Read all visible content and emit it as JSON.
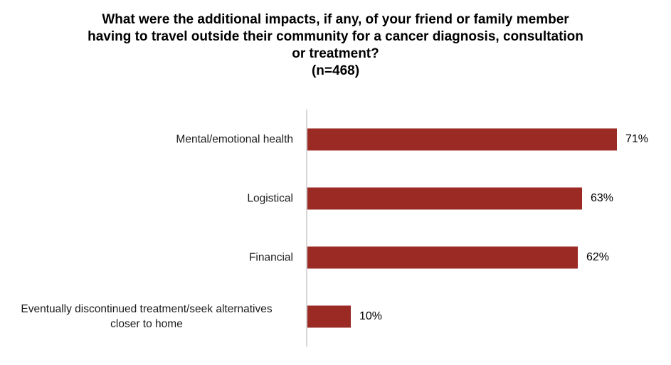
{
  "chart_data": {
    "type": "bar",
    "orientation": "horizontal",
    "title": "What were the additional impacts, if any, of your friend or family member having to travel outside their community for a cancer diagnosis, consultation or treatment?",
    "sample_size": "(n=468)",
    "title_lines": [
      "What were the additional impacts, if any, of your friend or family member",
      "having to travel outside their community for a cancer diagnosis, consultation",
      "or treatment?",
      "(n=468)"
    ],
    "categories": [
      "Mental/emotional health",
      "Logistical",
      "Financial",
      "Eventually discontinued treatment/seek alternatives closer to home"
    ],
    "category_display_lines": [
      [
        "Mental/emotional health"
      ],
      [
        "Logistical"
      ],
      [
        "Financial"
      ],
      [
        "Eventually discontinued treatment/seek alternatives",
        "closer to home"
      ]
    ],
    "values": [
      71,
      63,
      62,
      10
    ],
    "value_labels": [
      "71%",
      "63%",
      "62%",
      "10%"
    ],
    "xlim": [
      0,
      80
    ],
    "bar_color": "#9a2a23",
    "axis_line_color": "#d6d6d6",
    "grid": "off",
    "legend_position": "none",
    "value_labels_position": "outside-end"
  }
}
